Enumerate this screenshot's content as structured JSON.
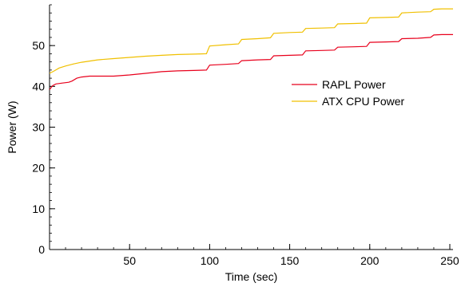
{
  "chart_data": {
    "type": "line",
    "title": "",
    "xlabel": "Time (sec)",
    "ylabel": "Power (W)",
    "xlim": [
      0,
      252
    ],
    "ylim": [
      0,
      60
    ],
    "x_ticks": [
      50,
      100,
      150,
      200,
      250
    ],
    "y_ticks": [
      0,
      10,
      20,
      30,
      40,
      50
    ],
    "x_tick_labels": [
      "50",
      "100",
      "150",
      "200",
      "250"
    ],
    "y_tick_labels": [
      "0",
      "10",
      "20",
      "30",
      "40",
      "50"
    ],
    "grid": false,
    "legend_position": "right",
    "series": [
      {
        "name": "RAPL Power",
        "color": "#e8001c",
        "points": [
          [
            0,
            39.2
          ],
          [
            2,
            40.2
          ],
          [
            4,
            40.6
          ],
          [
            8,
            40.8
          ],
          [
            12,
            41.0
          ],
          [
            14,
            41.3
          ],
          [
            17,
            42.0
          ],
          [
            20,
            42.3
          ],
          [
            25,
            42.5
          ],
          [
            30,
            42.5
          ],
          [
            40,
            42.5
          ],
          [
            50,
            42.8
          ],
          [
            60,
            43.2
          ],
          [
            70,
            43.6
          ],
          [
            80,
            43.8
          ],
          [
            90,
            43.9
          ],
          [
            98,
            44.0
          ],
          [
            100,
            45.2
          ],
          [
            110,
            45.4
          ],
          [
            118,
            45.6
          ],
          [
            120,
            46.3
          ],
          [
            130,
            46.5
          ],
          [
            138,
            46.6
          ],
          [
            140,
            47.5
          ],
          [
            150,
            47.6
          ],
          [
            158,
            47.7
          ],
          [
            160,
            48.7
          ],
          [
            170,
            48.8
          ],
          [
            178,
            48.9
          ],
          [
            180,
            49.6
          ],
          [
            190,
            49.7
          ],
          [
            198,
            49.8
          ],
          [
            200,
            50.8
          ],
          [
            210,
            50.9
          ],
          [
            218,
            51.0
          ],
          [
            220,
            51.7
          ],
          [
            230,
            51.8
          ],
          [
            238,
            52.0
          ],
          [
            240,
            52.6
          ],
          [
            245,
            52.7
          ],
          [
            252,
            52.7
          ]
        ]
      },
      {
        "name": "ATX CPU Power",
        "color": "#f0c000",
        "points": [
          [
            0,
            43.2
          ],
          [
            3,
            43.8
          ],
          [
            6,
            44.5
          ],
          [
            10,
            45.0
          ],
          [
            15,
            45.5
          ],
          [
            20,
            45.9
          ],
          [
            30,
            46.5
          ],
          [
            40,
            46.8
          ],
          [
            50,
            47.1
          ],
          [
            60,
            47.4
          ],
          [
            70,
            47.6
          ],
          [
            80,
            47.8
          ],
          [
            90,
            47.9
          ],
          [
            98,
            48.0
          ],
          [
            100,
            49.9
          ],
          [
            110,
            50.2
          ],
          [
            118,
            50.4
          ],
          [
            120,
            51.5
          ],
          [
            130,
            51.7
          ],
          [
            138,
            51.9
          ],
          [
            140,
            53.0
          ],
          [
            150,
            53.2
          ],
          [
            158,
            53.3
          ],
          [
            160,
            54.2
          ],
          [
            170,
            54.3
          ],
          [
            178,
            54.4
          ],
          [
            180,
            55.3
          ],
          [
            190,
            55.4
          ],
          [
            198,
            55.5
          ],
          [
            200,
            56.8
          ],
          [
            210,
            56.9
          ],
          [
            218,
            57.0
          ],
          [
            220,
            58.0
          ],
          [
            230,
            58.2
          ],
          [
            238,
            58.3
          ],
          [
            240,
            58.9
          ],
          [
            245,
            59.0
          ],
          [
            252,
            59.0
          ]
        ]
      }
    ]
  }
}
